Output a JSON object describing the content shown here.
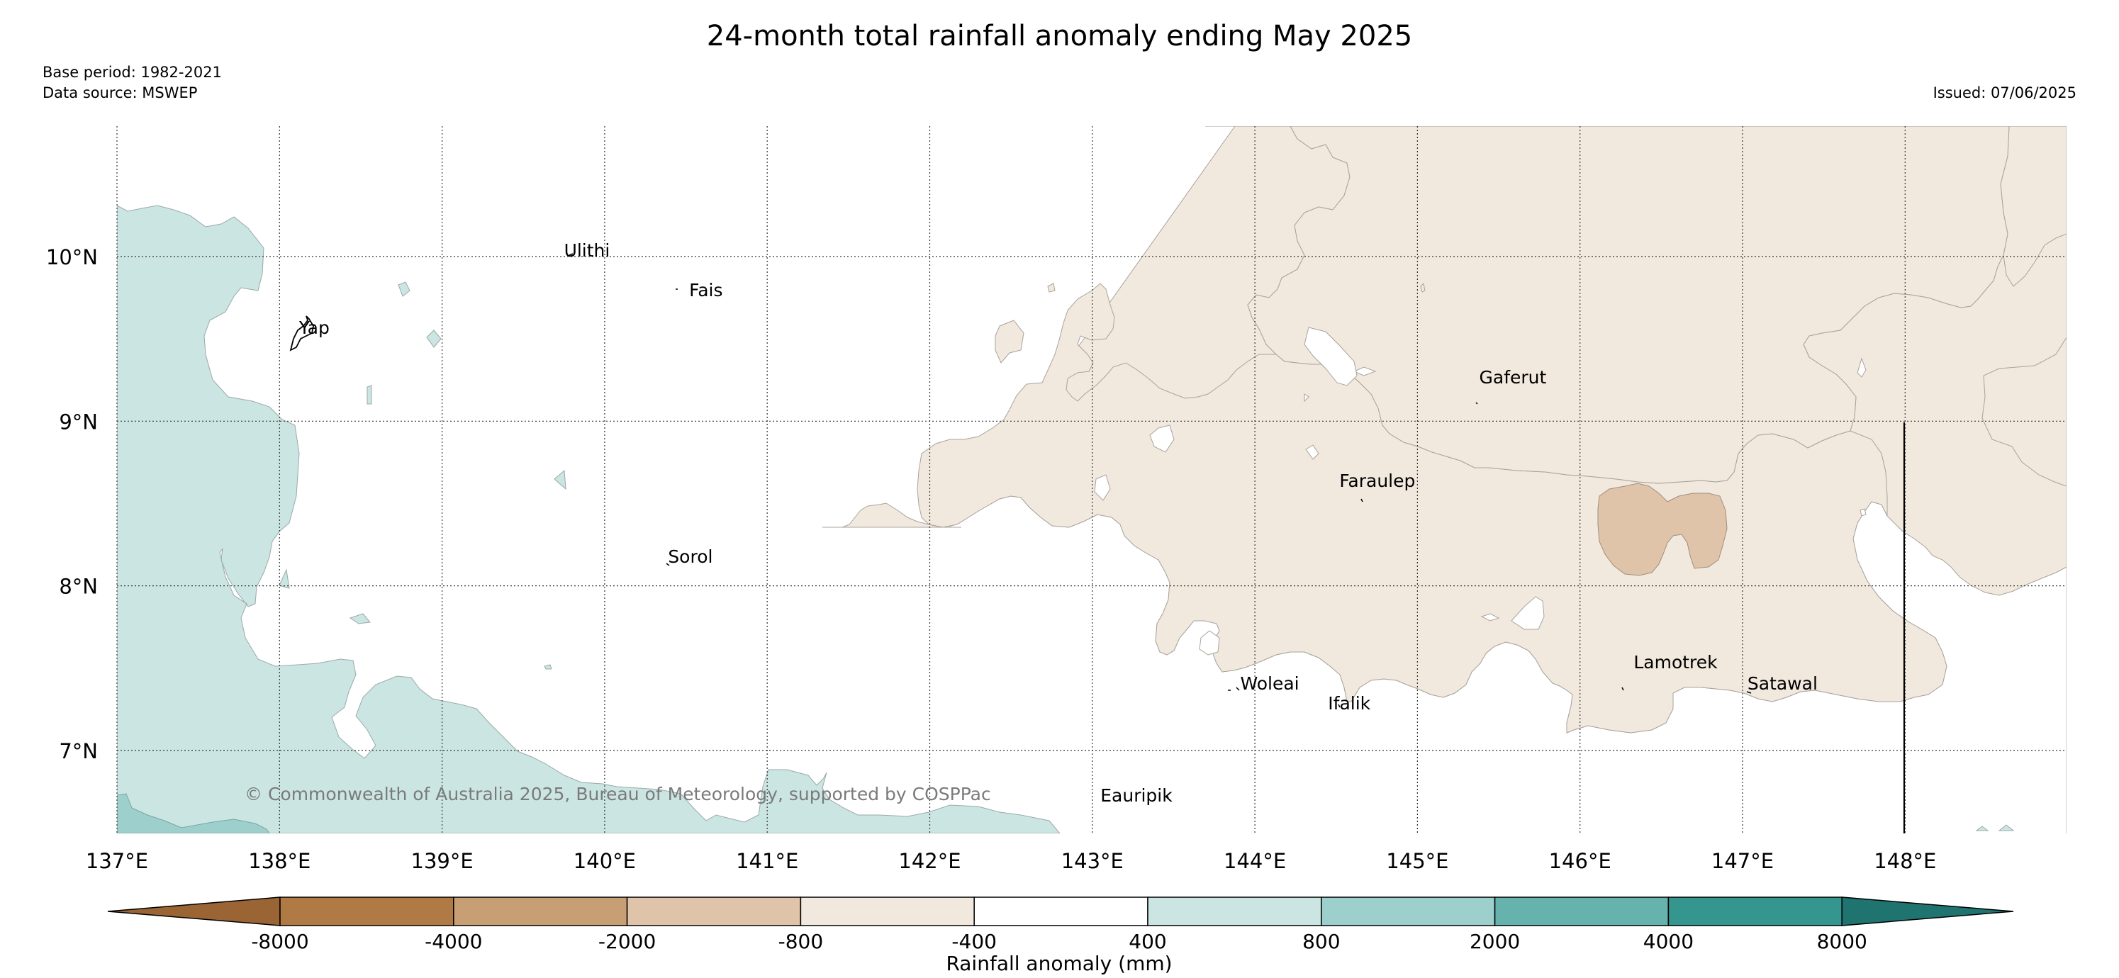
{
  "header": {
    "title": "24-month total rainfall anomaly ending May 2025",
    "base_period": "Base period: 1982-2021",
    "data_source": "Data source: MSWEP",
    "issued": "Issued: 07/06/2025"
  },
  "map": {
    "lon_ticks": [
      "137°E",
      "138°E",
      "139°E",
      "140°E",
      "141°E",
      "142°E",
      "143°E",
      "144°E",
      "145°E",
      "146°E",
      "147°E",
      "148°E"
    ],
    "lat_ticks": [
      "10°N",
      "9°N",
      "8°N",
      "7°N"
    ],
    "places": [
      {
        "name": "Ulithi",
        "lon": 139.75,
        "lat": 10.0
      },
      {
        "name": "Fais",
        "lon": 140.52,
        "lat": 9.76
      },
      {
        "name": "Yap",
        "lon": 138.12,
        "lat": 9.53
      },
      {
        "name": "Gaferut",
        "lon": 145.38,
        "lat": 9.23
      },
      {
        "name": "Faraulep",
        "lon": 144.52,
        "lat": 8.6
      },
      {
        "name": "Sorol",
        "lon": 140.39,
        "lat": 8.14
      },
      {
        "name": "Woleai",
        "lon": 143.91,
        "lat": 7.37
      },
      {
        "name": "Ifalik",
        "lon": 144.45,
        "lat": 7.25
      },
      {
        "name": "Lamotrek",
        "lon": 146.33,
        "lat": 7.5
      },
      {
        "name": "Satawal",
        "lon": 147.03,
        "lat": 7.37
      },
      {
        "name": "Eauripik",
        "lon": 143.05,
        "lat": 6.69
      }
    ],
    "credit": "© Commonwealth of Australia 2025, Bureau of Meteorology, supported by COSPPac"
  },
  "legend": {
    "label": "Rainfall anomaly (mm)",
    "ticks": [
      "-8000",
      "-4000",
      "-2000",
      "-800",
      "-400",
      "400",
      "800",
      "2000",
      "4000",
      "8000"
    ],
    "colors": [
      "#9a6434",
      "#b07a45",
      "#c89e74",
      "#dfc4a9",
      "#f1e8de",
      "#ffffff",
      "#cbe5e3",
      "#9dcfcc",
      "#66b2ad",
      "#35958f",
      "#1f7470"
    ]
  }
}
